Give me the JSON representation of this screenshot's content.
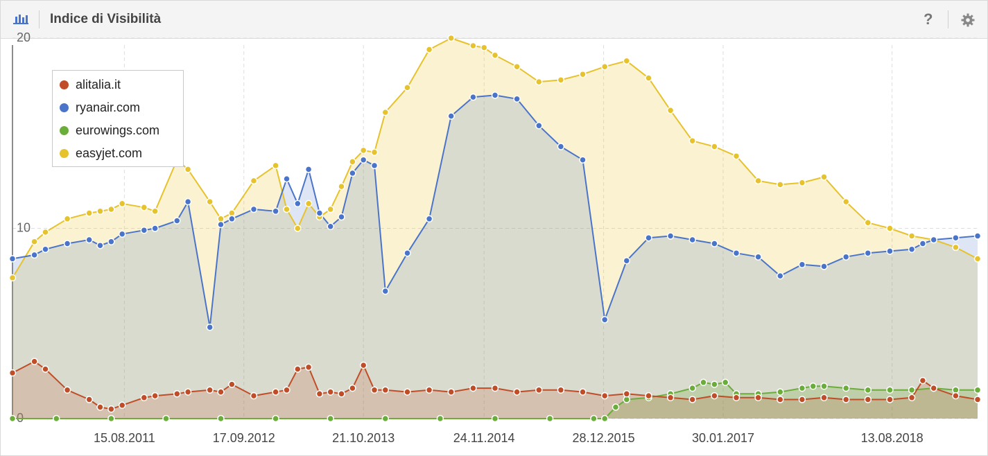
{
  "header": {
    "title": "Indice di Visibilità",
    "chart_icon": "bar-chart-icon",
    "help_icon": "question-icon",
    "help_label": "?",
    "settings_icon": "gear-icon"
  },
  "chart_data": {
    "type": "area",
    "x_tick_labels": [
      "15.08.2011",
      "17.09.2012",
      "21.10.2013",
      "24.11.2014",
      "28.12.2015",
      "30.01.2017",
      "13.08.2018"
    ],
    "y_tick_labels": [
      "0",
      "10",
      "20"
    ],
    "ylim": [
      0,
      20
    ],
    "legend_position": "top-left",
    "grid": true,
    "series": [
      {
        "name": "alitalia.it",
        "color": "#bf4d28",
        "values": [
          [
            2010.6,
            2.4
          ],
          [
            2010.8,
            3.0
          ],
          [
            2010.9,
            2.6
          ],
          [
            2011.1,
            1.5
          ],
          [
            2011.3,
            1.0
          ],
          [
            2011.4,
            0.6
          ],
          [
            2011.5,
            0.5
          ],
          [
            2011.6,
            0.7
          ],
          [
            2011.8,
            1.1
          ],
          [
            2011.9,
            1.2
          ],
          [
            2012.1,
            1.3
          ],
          [
            2012.2,
            1.4
          ],
          [
            2012.4,
            1.5
          ],
          [
            2012.5,
            1.4
          ],
          [
            2012.6,
            1.8
          ],
          [
            2012.8,
            1.2
          ],
          [
            2013.0,
            1.4
          ],
          [
            2013.1,
            1.5
          ],
          [
            2013.2,
            2.6
          ],
          [
            2013.3,
            2.7
          ],
          [
            2013.4,
            1.3
          ],
          [
            2013.5,
            1.4
          ],
          [
            2013.6,
            1.3
          ],
          [
            2013.7,
            1.6
          ],
          [
            2013.8,
            2.8
          ],
          [
            2013.9,
            1.5
          ],
          [
            2014.0,
            1.5
          ],
          [
            2014.2,
            1.4
          ],
          [
            2014.4,
            1.5
          ],
          [
            2014.6,
            1.4
          ],
          [
            2014.8,
            1.6
          ],
          [
            2015.0,
            1.6
          ],
          [
            2015.2,
            1.4
          ],
          [
            2015.4,
            1.5
          ],
          [
            2015.6,
            1.5
          ],
          [
            2015.8,
            1.4
          ],
          [
            2016.0,
            1.2
          ],
          [
            2016.2,
            1.3
          ],
          [
            2016.4,
            1.2
          ],
          [
            2016.6,
            1.1
          ],
          [
            2016.8,
            1.0
          ],
          [
            2017.0,
            1.2
          ],
          [
            2017.2,
            1.1
          ],
          [
            2017.4,
            1.1
          ],
          [
            2017.6,
            1.0
          ],
          [
            2017.8,
            1.0
          ],
          [
            2018.0,
            1.1
          ],
          [
            2018.2,
            1.0
          ],
          [
            2018.4,
            1.0
          ],
          [
            2018.6,
            1.0
          ],
          [
            2018.8,
            1.1
          ],
          [
            2018.9,
            2.0
          ],
          [
            2019.0,
            1.6
          ],
          [
            2019.2,
            1.2
          ],
          [
            2019.4,
            1.0
          ]
        ]
      },
      {
        "name": "ryanair.com",
        "color": "#4a74c9",
        "values": [
          [
            2010.6,
            8.4
          ],
          [
            2010.8,
            8.6
          ],
          [
            2010.9,
            8.9
          ],
          [
            2011.1,
            9.2
          ],
          [
            2011.3,
            9.4
          ],
          [
            2011.4,
            9.1
          ],
          [
            2011.5,
            9.3
          ],
          [
            2011.6,
            9.7
          ],
          [
            2011.8,
            9.9
          ],
          [
            2011.9,
            10.0
          ],
          [
            2012.1,
            10.4
          ],
          [
            2012.2,
            11.4
          ],
          [
            2012.4,
            4.8
          ],
          [
            2012.5,
            10.2
          ],
          [
            2012.6,
            10.5
          ],
          [
            2012.8,
            11.0
          ],
          [
            2013.0,
            10.9
          ],
          [
            2013.1,
            12.6
          ],
          [
            2013.2,
            11.3
          ],
          [
            2013.3,
            13.1
          ],
          [
            2013.4,
            10.8
          ],
          [
            2013.5,
            10.1
          ],
          [
            2013.6,
            10.6
          ],
          [
            2013.7,
            12.9
          ],
          [
            2013.8,
            13.6
          ],
          [
            2013.9,
            13.3
          ],
          [
            2014.0,
            6.7
          ],
          [
            2014.2,
            8.7
          ],
          [
            2014.4,
            10.5
          ],
          [
            2014.6,
            15.9
          ],
          [
            2014.8,
            16.9
          ],
          [
            2015.0,
            17.0
          ],
          [
            2015.2,
            16.8
          ],
          [
            2015.4,
            15.4
          ],
          [
            2015.6,
            14.3
          ],
          [
            2015.8,
            13.6
          ],
          [
            2016.0,
            5.2
          ],
          [
            2016.2,
            8.3
          ],
          [
            2016.4,
            9.5
          ],
          [
            2016.6,
            9.6
          ],
          [
            2016.8,
            9.4
          ],
          [
            2017.0,
            9.2
          ],
          [
            2017.2,
            8.7
          ],
          [
            2017.4,
            8.5
          ],
          [
            2017.6,
            7.5
          ],
          [
            2017.8,
            8.1
          ],
          [
            2018.0,
            8.0
          ],
          [
            2018.2,
            8.5
          ],
          [
            2018.4,
            8.7
          ],
          [
            2018.6,
            8.8
          ],
          [
            2018.8,
            8.9
          ],
          [
            2018.9,
            9.2
          ],
          [
            2019.0,
            9.4
          ],
          [
            2019.2,
            9.5
          ],
          [
            2019.4,
            9.6
          ]
        ]
      },
      {
        "name": "eurowings.com",
        "color": "#6aad3a",
        "values": [
          [
            2010.6,
            0.0
          ],
          [
            2011.0,
            0.0
          ],
          [
            2011.5,
            0.0
          ],
          [
            2012.0,
            0.0
          ],
          [
            2012.5,
            0.0
          ],
          [
            2013.0,
            0.0
          ],
          [
            2013.5,
            0.0
          ],
          [
            2014.0,
            0.0
          ],
          [
            2014.5,
            0.0
          ],
          [
            2015.0,
            0.0
          ],
          [
            2015.5,
            0.0
          ],
          [
            2015.9,
            0.0
          ],
          [
            2016.0,
            0.0
          ],
          [
            2016.1,
            0.6
          ],
          [
            2016.2,
            1.0
          ],
          [
            2016.4,
            1.1
          ],
          [
            2016.6,
            1.3
          ],
          [
            2016.8,
            1.6
          ],
          [
            2016.9,
            1.9
          ],
          [
            2017.0,
            1.8
          ],
          [
            2017.1,
            1.9
          ],
          [
            2017.2,
            1.3
          ],
          [
            2017.4,
            1.3
          ],
          [
            2017.6,
            1.4
          ],
          [
            2017.8,
            1.6
          ],
          [
            2017.9,
            1.7
          ],
          [
            2018.0,
            1.7
          ],
          [
            2018.2,
            1.6
          ],
          [
            2018.4,
            1.5
          ],
          [
            2018.6,
            1.5
          ],
          [
            2018.8,
            1.5
          ],
          [
            2019.0,
            1.6
          ],
          [
            2019.2,
            1.5
          ],
          [
            2019.4,
            1.5
          ]
        ]
      },
      {
        "name": "easyjet.com",
        "color": "#e6c22c",
        "values": [
          [
            2010.6,
            7.4
          ],
          [
            2010.8,
            9.3
          ],
          [
            2010.9,
            9.8
          ],
          [
            2011.1,
            10.5
          ],
          [
            2011.3,
            10.8
          ],
          [
            2011.4,
            10.9
          ],
          [
            2011.5,
            11.0
          ],
          [
            2011.6,
            11.3
          ],
          [
            2011.8,
            11.1
          ],
          [
            2011.9,
            10.9
          ],
          [
            2012.1,
            13.6
          ],
          [
            2012.2,
            13.1
          ],
          [
            2012.4,
            11.4
          ],
          [
            2012.5,
            10.5
          ],
          [
            2012.6,
            10.8
          ],
          [
            2012.8,
            12.5
          ],
          [
            2013.0,
            13.3
          ],
          [
            2013.1,
            11.0
          ],
          [
            2013.2,
            10.0
          ],
          [
            2013.3,
            11.3
          ],
          [
            2013.4,
            10.6
          ],
          [
            2013.5,
            11.0
          ],
          [
            2013.6,
            12.2
          ],
          [
            2013.7,
            13.5
          ],
          [
            2013.8,
            14.1
          ],
          [
            2013.9,
            14.0
          ],
          [
            2014.0,
            16.1
          ],
          [
            2014.2,
            17.4
          ],
          [
            2014.4,
            19.4
          ],
          [
            2014.6,
            20.0
          ],
          [
            2014.8,
            19.6
          ],
          [
            2014.9,
            19.5
          ],
          [
            2015.0,
            19.1
          ],
          [
            2015.2,
            18.5
          ],
          [
            2015.4,
            17.7
          ],
          [
            2015.6,
            17.8
          ],
          [
            2015.8,
            18.1
          ],
          [
            2016.0,
            18.5
          ],
          [
            2016.2,
            18.8
          ],
          [
            2016.4,
            17.9
          ],
          [
            2016.6,
            16.2
          ],
          [
            2016.8,
            14.6
          ],
          [
            2017.0,
            14.3
          ],
          [
            2017.2,
            13.8
          ],
          [
            2017.4,
            12.5
          ],
          [
            2017.6,
            12.3
          ],
          [
            2017.8,
            12.4
          ],
          [
            2018.0,
            12.7
          ],
          [
            2018.2,
            11.4
          ],
          [
            2018.4,
            10.3
          ],
          [
            2018.6,
            10.0
          ],
          [
            2018.8,
            9.6
          ],
          [
            2019.0,
            9.4
          ],
          [
            2019.2,
            9.0
          ],
          [
            2019.4,
            8.4
          ]
        ]
      }
    ]
  }
}
